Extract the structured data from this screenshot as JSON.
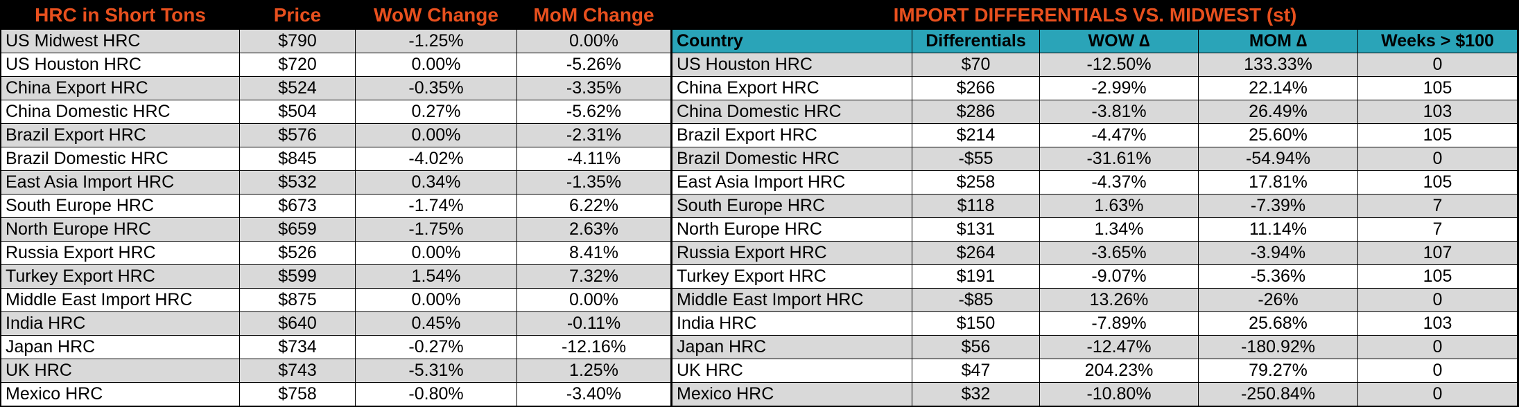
{
  "colors": {
    "background": "#000000",
    "title_text": "#E8501E",
    "header_teal": "#2AA4B8",
    "row_gray": "#D9D9D9",
    "row_white": "#FFFFFF",
    "text": "#000000"
  },
  "left_table": {
    "headers": [
      "HRC in Short Tons",
      "Price",
      "WoW Change",
      "MoM Change"
    ],
    "rows": [
      [
        "US Midwest HRC",
        "$790",
        "-1.25%",
        "0.00%"
      ],
      [
        "US Houston HRC",
        "$720",
        "0.00%",
        "-5.26%"
      ],
      [
        "China Export HRC",
        "$524",
        "-0.35%",
        "-3.35%"
      ],
      [
        "China Domestic HRC",
        "$504",
        "0.27%",
        "-5.62%"
      ],
      [
        "Brazil Export HRC",
        "$576",
        "0.00%",
        "-2.31%"
      ],
      [
        "Brazil Domestic HRC",
        "$845",
        "-4.02%",
        "-4.11%"
      ],
      [
        "East Asia Import HRC",
        "$532",
        "0.34%",
        "-1.35%"
      ],
      [
        "South Europe HRC",
        "$673",
        "-1.74%",
        "6.22%"
      ],
      [
        "North Europe HRC",
        "$659",
        "-1.75%",
        "2.63%"
      ],
      [
        "Russia Export HRC",
        "$526",
        "0.00%",
        "8.41%"
      ],
      [
        "Turkey Export HRC",
        "$599",
        "1.54%",
        "7.32%"
      ],
      [
        "Middle East Import HRC",
        "$875",
        "0.00%",
        "0.00%"
      ],
      [
        "India HRC",
        "$640",
        "0.45%",
        "-0.11%"
      ],
      [
        "Japan HRC",
        "$734",
        "-0.27%",
        "-12.16%"
      ],
      [
        "UK HRC",
        "$743",
        "-5.31%",
        "1.25%"
      ],
      [
        "Mexico HRC",
        "$758",
        "-0.80%",
        "-3.40%"
      ]
    ]
  },
  "right_table": {
    "title": "IMPORT DIFFERENTIALS VS. MIDWEST (st)",
    "headers": [
      "Country",
      "Differentials",
      "WOW ∆",
      "MOM ∆",
      "Weeks > $100"
    ],
    "rows": [
      [
        "US Houston HRC",
        "$70",
        "-12.50%",
        "133.33%",
        "0"
      ],
      [
        "China Export HRC",
        "$266",
        "-2.99%",
        "22.14%",
        "105"
      ],
      [
        "China Domestic HRC",
        "$286",
        "-3.81%",
        "26.49%",
        "103"
      ],
      [
        "Brazil Export HRC",
        "$214",
        "-4.47%",
        "25.60%",
        "105"
      ],
      [
        "Brazil Domestic HRC",
        "-$55",
        "-31.61%",
        "-54.94%",
        "0"
      ],
      [
        "East Asia Import HRC",
        "$258",
        "-4.37%",
        "17.81%",
        "105"
      ],
      [
        "South Europe HRC",
        "$118",
        "1.63%",
        "-7.39%",
        "7"
      ],
      [
        "North Europe HRC",
        "$131",
        "1.34%",
        "11.14%",
        "7"
      ],
      [
        "Russia Export HRC",
        "$264",
        "-3.65%",
        "-3.94%",
        "107"
      ],
      [
        "Turkey Export HRC",
        "$191",
        "-9.07%",
        "-5.36%",
        "105"
      ],
      [
        "Middle East Import HRC",
        "-$85",
        "13.26%",
        "-26%",
        "0"
      ],
      [
        "India HRC",
        "$150",
        "-7.89%",
        "25.68%",
        "103"
      ],
      [
        "Japan HRC",
        "$56",
        "-12.47%",
        "-180.92%",
        "0"
      ],
      [
        "UK HRC",
        "$47",
        "204.23%",
        "79.27%",
        "0"
      ],
      [
        "Mexico HRC",
        "$32",
        "-10.80%",
        "-250.84%",
        "0"
      ]
    ]
  },
  "chart_data": [
    {
      "type": "table",
      "title": "HRC in Short Tons",
      "columns": [
        "HRC in Short Tons",
        "Price",
        "WoW Change",
        "MoM Change"
      ],
      "rows": [
        [
          "US Midwest HRC",
          "$790",
          "-1.25%",
          "0.00%"
        ],
        [
          "US Houston HRC",
          "$720",
          "0.00%",
          "-5.26%"
        ],
        [
          "China Export HRC",
          "$524",
          "-0.35%",
          "-3.35%"
        ],
        [
          "China Domestic HRC",
          "$504",
          "0.27%",
          "-5.62%"
        ],
        [
          "Brazil Export HRC",
          "$576",
          "0.00%",
          "-2.31%"
        ],
        [
          "Brazil Domestic HRC",
          "$845",
          "-4.02%",
          "-4.11%"
        ],
        [
          "East Asia Import HRC",
          "$532",
          "0.34%",
          "-1.35%"
        ],
        [
          "South Europe HRC",
          "$673",
          "-1.74%",
          "6.22%"
        ],
        [
          "North Europe HRC",
          "$659",
          "-1.75%",
          "2.63%"
        ],
        [
          "Russia Export HRC",
          "$526",
          "0.00%",
          "8.41%"
        ],
        [
          "Turkey Export HRC",
          "$599",
          "1.54%",
          "7.32%"
        ],
        [
          "Middle East Import HRC",
          "$875",
          "0.00%",
          "0.00%"
        ],
        [
          "India HRC",
          "$640",
          "0.45%",
          "-0.11%"
        ],
        [
          "Japan HRC",
          "$734",
          "-0.27%",
          "-12.16%"
        ],
        [
          "UK HRC",
          "$743",
          "-5.31%",
          "1.25%"
        ],
        [
          "Mexico HRC",
          "$758",
          "-0.80%",
          "-3.40%"
        ]
      ]
    },
    {
      "type": "table",
      "title": "IMPORT DIFFERENTIALS VS. MIDWEST (st)",
      "columns": [
        "Country",
        "Differentials",
        "WOW ∆",
        "MOM ∆",
        "Weeks > $100"
      ],
      "rows": [
        [
          "US Houston HRC",
          "$70",
          "-12.50%",
          "133.33%",
          "0"
        ],
        [
          "China Export HRC",
          "$266",
          "-2.99%",
          "22.14%",
          "105"
        ],
        [
          "China Domestic HRC",
          "$286",
          "-3.81%",
          "26.49%",
          "103"
        ],
        [
          "Brazil Export HRC",
          "$214",
          "-4.47%",
          "25.60%",
          "105"
        ],
        [
          "Brazil Domestic HRC",
          "-$55",
          "-31.61%",
          "-54.94%",
          "0"
        ],
        [
          "East Asia Import HRC",
          "$258",
          "-4.37%",
          "17.81%",
          "105"
        ],
        [
          "South Europe HRC",
          "$118",
          "1.63%",
          "-7.39%",
          "7"
        ],
        [
          "North Europe HRC",
          "$131",
          "1.34%",
          "11.14%",
          "7"
        ],
        [
          "Russia Export HRC",
          "$264",
          "-3.65%",
          "-3.94%",
          "107"
        ],
        [
          "Turkey Export HRC",
          "$191",
          "-9.07%",
          "-5.36%",
          "105"
        ],
        [
          "Middle East Import HRC",
          "-$85",
          "13.26%",
          "-26%",
          "0"
        ],
        [
          "India HRC",
          "$150",
          "-7.89%",
          "25.68%",
          "103"
        ],
        [
          "Japan HRC",
          "$56",
          "-12.47%",
          "-180.92%",
          "0"
        ],
        [
          "UK HRC",
          "$47",
          "204.23%",
          "79.27%",
          "0"
        ],
        [
          "Mexico HRC",
          "$32",
          "-10.80%",
          "-250.84%",
          "0"
        ]
      ]
    }
  ]
}
